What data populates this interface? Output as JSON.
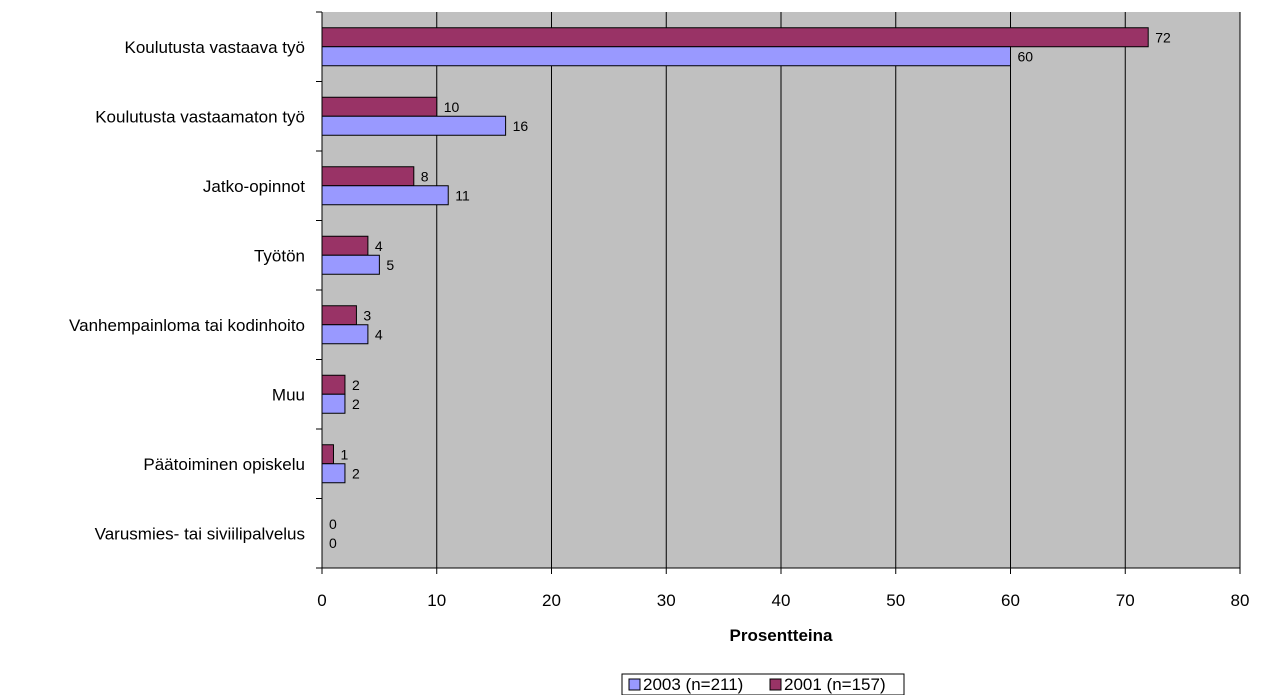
{
  "chart_data": {
    "type": "bar",
    "orientation": "horizontal",
    "categories": [
      "Koulutusta vastaava työ",
      "Koulutusta vastaamaton työ",
      "Jatko-opinnot",
      "Työtön",
      "Vanhempainloma tai kodinhoito",
      "Muu",
      "Päätoiminen opiskelu",
      "Varusmies- tai siviilipalvelus"
    ],
    "series": [
      {
        "name": "2001 (n=157)",
        "color": "#993366",
        "values": [
          72,
          10,
          8,
          4,
          3,
          2,
          1,
          0
        ]
      },
      {
        "name": "2003 (n=211)",
        "color": "#9999ff",
        "values": [
          60,
          16,
          11,
          5,
          4,
          2,
          2,
          0
        ]
      }
    ],
    "legend_order": [
      "2003 (n=211)",
      "2001 (n=157)"
    ],
    "xlabel": "Prosentteina",
    "xlim": [
      0,
      80
    ],
    "xticks": [
      0,
      10,
      20,
      30,
      40,
      50,
      60,
      70,
      80
    ],
    "grid": true,
    "plot_background": "#c0c0c0",
    "legend_position": "bottom"
  }
}
